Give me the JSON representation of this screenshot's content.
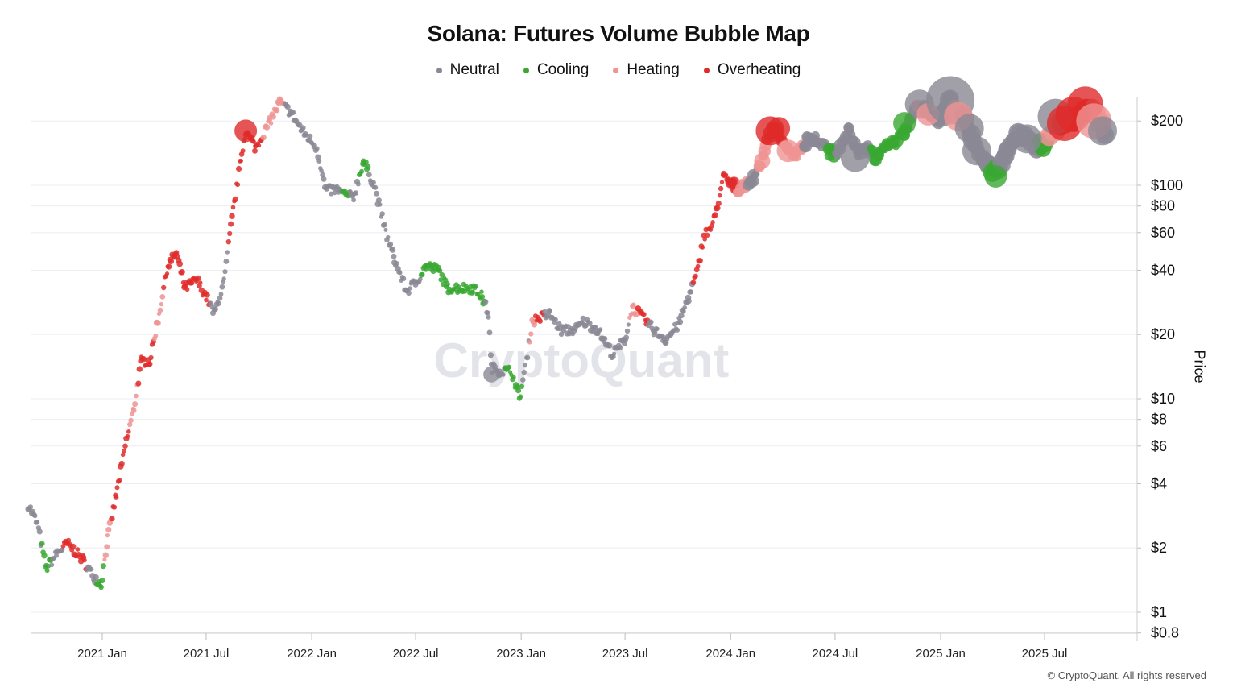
{
  "chart_data": {
    "type": "scatter",
    "title": "Solana: Futures Volume Bubble Map",
    "ylabel": "Price",
    "xlabel": "",
    "yscale": "log",
    "ylim": [
      0.8,
      290
    ],
    "xlim": [
      "2020-08-20",
      "2025-10-20"
    ],
    "x_ticks": [
      "2021 Jan",
      "2021 Jul",
      "2022 Jan",
      "2022 Jul",
      "2023 Jan",
      "2023 Jul",
      "2024 Jan",
      "2024 Jul",
      "2025 Jan",
      "2025 Jul"
    ],
    "y_ticks": [
      "$0.8",
      "$1",
      "$2",
      "$4",
      "$6",
      "$8",
      "$10",
      "$20",
      "$40",
      "$60",
      "$80",
      "$100",
      "$200"
    ],
    "watermark": "CryptoQuant",
    "legend": [
      {
        "name": "Neutral",
        "color": "#8a8894"
      },
      {
        "name": "Cooling",
        "color": "#3aa832"
      },
      {
        "name": "Heating",
        "color": "#ef9393"
      },
      {
        "name": "Overheating",
        "color": "#e02b2b"
      }
    ],
    "price_path": [
      [
        "2020-08-25",
        3.2,
        "Neutral"
      ],
      [
        "2020-09-10",
        2.6,
        "Neutral"
      ],
      [
        "2020-09-25",
        1.6,
        "Cooling"
      ],
      [
        "2020-10-15",
        1.9,
        "Neutral"
      ],
      [
        "2020-11-01",
        2.1,
        "Overheating"
      ],
      [
        "2020-11-25",
        1.8,
        "Overheating"
      ],
      [
        "2020-12-15",
        1.5,
        "Neutral"
      ],
      [
        "2020-12-30",
        1.35,
        "Cooling"
      ],
      [
        "2021-01-10",
        2.2,
        "Heating"
      ],
      [
        "2021-01-25",
        3.5,
        "Overheating"
      ],
      [
        "2021-02-10",
        6.0,
        "Overheating"
      ],
      [
        "2021-02-25",
        9.0,
        "Heating"
      ],
      [
        "2021-03-10",
        15.0,
        "Overheating"
      ],
      [
        "2021-03-25",
        15.0,
        "Overheating"
      ],
      [
        "2021-04-10",
        25.0,
        "Heating"
      ],
      [
        "2021-04-25",
        42.0,
        "Overheating"
      ],
      [
        "2021-05-10",
        48.0,
        "Overheating"
      ],
      [
        "2021-05-25",
        33.0,
        "Overheating"
      ],
      [
        "2021-06-15",
        36.0,
        "Overheating"
      ],
      [
        "2021-07-01",
        30.0,
        "Overheating"
      ],
      [
        "2021-07-15",
        25.0,
        "Neutral"
      ],
      [
        "2021-08-01",
        35.0,
        "Neutral"
      ],
      [
        "2021-08-15",
        70.0,
        "Overheating"
      ],
      [
        "2021-09-01",
        140.0,
        "Overheating"
      ],
      [
        "2021-09-08",
        180.0,
        "Overheating"
      ],
      [
        "2021-09-25",
        150.0,
        "Overheating"
      ],
      [
        "2021-10-20",
        200.0,
        "Heating"
      ],
      [
        "2021-11-06",
        245.0,
        "Heating"
      ],
      [
        "2021-11-25",
        220.0,
        "Neutral"
      ],
      [
        "2021-12-15",
        180.0,
        "Neutral"
      ],
      [
        "2022-01-10",
        150.0,
        "Neutral"
      ],
      [
        "2022-01-25",
        95.0,
        "Neutral"
      ],
      [
        "2022-02-15",
        95.0,
        "Neutral"
      ],
      [
        "2022-03-01",
        90.0,
        "Cooling"
      ],
      [
        "2022-03-15",
        88.0,
        "Neutral"
      ],
      [
        "2022-04-01",
        130.0,
        "Cooling"
      ],
      [
        "2022-04-20",
        100.0,
        "Neutral"
      ],
      [
        "2022-05-10",
        60.0,
        "Neutral"
      ],
      [
        "2022-05-25",
        45.0,
        "Neutral"
      ],
      [
        "2022-06-15",
        32.0,
        "Neutral"
      ],
      [
        "2022-07-01",
        35.0,
        "Neutral"
      ],
      [
        "2022-07-20",
        42.0,
        "Cooling"
      ],
      [
        "2022-08-10",
        40.0,
        "Cooling"
      ],
      [
        "2022-08-25",
        33.0,
        "Cooling"
      ],
      [
        "2022-09-15",
        33.0,
        "Cooling"
      ],
      [
        "2022-10-10",
        33.0,
        "Cooling"
      ],
      [
        "2022-10-25",
        30.0,
        "Cooling"
      ],
      [
        "2022-11-05",
        25.0,
        "Neutral"
      ],
      [
        "2022-11-10",
        14.0,
        "Neutral"
      ],
      [
        "2022-11-25",
        13.5,
        "Neutral"
      ],
      [
        "2022-12-15",
        13.5,
        "Cooling"
      ],
      [
        "2022-12-29",
        10.0,
        "Cooling"
      ],
      [
        "2023-01-10",
        15.0,
        "Neutral"
      ],
      [
        "2023-01-20",
        23.0,
        "Heating"
      ],
      [
        "2023-02-01",
        24.0,
        "Overheating"
      ],
      [
        "2023-02-20",
        25.0,
        "Neutral"
      ],
      [
        "2023-03-10",
        21.0,
        "Neutral"
      ],
      [
        "2023-04-05",
        21.0,
        "Neutral"
      ],
      [
        "2023-04-20",
        23.0,
        "Neutral"
      ],
      [
        "2023-05-15",
        21.0,
        "Neutral"
      ],
      [
        "2023-06-10",
        16.0,
        "Neutral"
      ],
      [
        "2023-07-01",
        19.0,
        "Neutral"
      ],
      [
        "2023-07-14",
        27.0,
        "Heating"
      ],
      [
        "2023-08-01",
        24.0,
        "Overheating"
      ],
      [
        "2023-08-20",
        21.0,
        "Neutral"
      ],
      [
        "2023-09-10",
        19.0,
        "Neutral"
      ],
      [
        "2023-10-01",
        22.0,
        "Neutral"
      ],
      [
        "2023-10-20",
        30.0,
        "Neutral"
      ],
      [
        "2023-11-05",
        40.0,
        "Overheating"
      ],
      [
        "2023-11-15",
        58.0,
        "Overheating"
      ],
      [
        "2023-12-01",
        65.0,
        "Overheating"
      ],
      [
        "2023-12-20",
        110.0,
        "Overheating"
      ],
      [
        "2024-01-05",
        100.0,
        "Overheating"
      ],
      [
        "2024-01-20",
        95.0,
        "Heating"
      ],
      [
        "2024-02-10",
        110.0,
        "Neutral"
      ],
      [
        "2024-02-25",
        130.0,
        "Heating"
      ],
      [
        "2024-03-10",
        180.0,
        "Overheating"
      ],
      [
        "2024-03-25",
        175.0,
        "Overheating"
      ],
      [
        "2024-04-10",
        150.0,
        "Heating"
      ],
      [
        "2024-04-25",
        140.0,
        "Heating"
      ],
      [
        "2024-05-20",
        170.0,
        "Neutral"
      ],
      [
        "2024-06-10",
        155.0,
        "Neutral"
      ],
      [
        "2024-06-25",
        140.0,
        "Cooling"
      ],
      [
        "2024-07-10",
        150.0,
        "Neutral"
      ],
      [
        "2024-07-25",
        180.0,
        "Neutral"
      ],
      [
        "2024-08-10",
        140.0,
        "Neutral"
      ],
      [
        "2024-08-25",
        150.0,
        "Neutral"
      ],
      [
        "2024-09-10",
        135.0,
        "Cooling"
      ],
      [
        "2024-09-25",
        150.0,
        "Cooling"
      ],
      [
        "2024-10-15",
        160.0,
        "Cooling"
      ],
      [
        "2024-10-30",
        180.0,
        "Cooling"
      ],
      [
        "2024-11-15",
        220.0,
        "Neutral"
      ],
      [
        "2024-11-25",
        235.0,
        "Heating"
      ],
      [
        "2024-12-10",
        220.0,
        "Neutral"
      ],
      [
        "2024-12-30",
        195.0,
        "Neutral"
      ],
      [
        "2025-01-18",
        250.0,
        "Neutral"
      ],
      [
        "2025-02-01",
        220.0,
        "Heating"
      ],
      [
        "2025-02-15",
        195.0,
        "Neutral"
      ],
      [
        "2025-03-01",
        150.0,
        "Neutral"
      ],
      [
        "2025-03-20",
        130.0,
        "Neutral"
      ],
      [
        "2025-04-07",
        115.0,
        "Cooling"
      ],
      [
        "2025-04-20",
        130.0,
        "Neutral"
      ],
      [
        "2025-05-10",
        165.0,
        "Neutral"
      ],
      [
        "2025-05-25",
        175.0,
        "Neutral"
      ],
      [
        "2025-06-15",
        150.0,
        "Neutral"
      ],
      [
        "2025-07-01",
        155.0,
        "Cooling"
      ],
      [
        "2025-07-15",
        180.0,
        "Heating"
      ],
      [
        "2025-08-01",
        195.0,
        "Overheating"
      ],
      [
        "2025-08-15",
        200.0,
        "Overheating"
      ],
      [
        "2025-08-30",
        210.0,
        "Overheating"
      ],
      [
        "2025-09-15",
        235.0,
        "Overheating"
      ],
      [
        "2025-09-30",
        210.0,
        "Heating"
      ],
      [
        "2025-10-10",
        190.0,
        "Heating"
      ],
      [
        "2025-10-15",
        165.0,
        "Neutral"
      ]
    ],
    "large_bubbles": [
      [
        "2021-09-08",
        180.0,
        "Overheating",
        2
      ],
      [
        "2022-11-10",
        13.0,
        "Neutral",
        1
      ],
      [
        "2024-03-10",
        180.0,
        "Overheating",
        3
      ],
      [
        "2024-03-25",
        185.0,
        "Overheating",
        2
      ],
      [
        "2024-02-25",
        130.0,
        "Heating",
        1
      ],
      [
        "2024-04-10",
        145.0,
        "Heating",
        2
      ],
      [
        "2024-08-05",
        135.0,
        "Neutral",
        3
      ],
      [
        "2024-11-25",
        240.0,
        "Neutral",
        3
      ],
      [
        "2024-12-10",
        215.0,
        "Heating",
        2
      ],
      [
        "2024-10-30",
        195.0,
        "Cooling",
        2
      ],
      [
        "2025-01-18",
        250.0,
        "Neutral",
        6
      ],
      [
        "2025-02-01",
        210.0,
        "Heating",
        3
      ],
      [
        "2025-02-20",
        185.0,
        "Neutral",
        3
      ],
      [
        "2025-03-05",
        145.0,
        "Neutral",
        3
      ],
      [
        "2025-04-07",
        110.0,
        "Cooling",
        2
      ],
      [
        "2025-06-01",
        165.0,
        "Neutral",
        3
      ],
      [
        "2025-07-20",
        210.0,
        "Neutral",
        4
      ],
      [
        "2025-08-05",
        195.0,
        "Overheating",
        4
      ],
      [
        "2025-08-20",
        215.0,
        "Overheating",
        4
      ],
      [
        "2025-09-10",
        240.0,
        "Overheating",
        4
      ],
      [
        "2025-09-25",
        200.0,
        "Heating",
        4
      ],
      [
        "2025-10-10",
        180.0,
        "Neutral",
        3
      ]
    ]
  },
  "axis": {
    "ylabel": "Price"
  },
  "footer": {
    "credit": "© CryptoQuant. All rights reserved"
  }
}
